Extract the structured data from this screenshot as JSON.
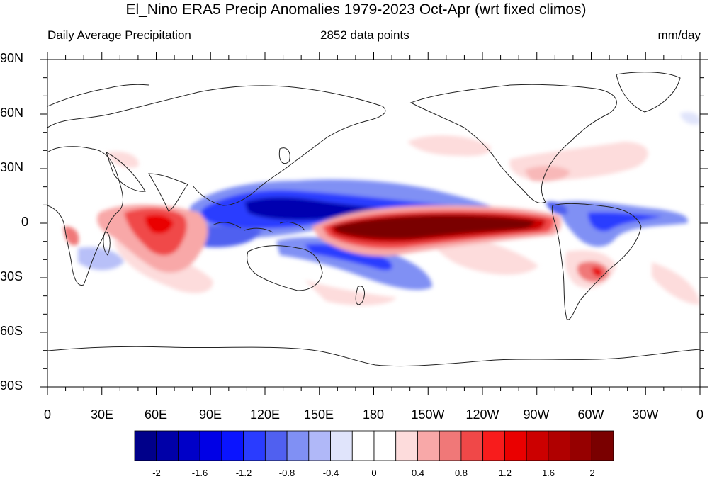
{
  "title": "El_Nino ERA5 Precip Anomalies 1979-2023 Oct-Apr (wrt fixed climos)",
  "subtitle_left": "Daily Average Precipitation",
  "subtitle_center": "2852 data points",
  "subtitle_right": "mm/day",
  "lat_labels": [
    "90N",
    "60N",
    "30N",
    "0",
    "30S",
    "60S",
    "90S"
  ],
  "lon_labels": [
    "0",
    "30E",
    "60E",
    "90E",
    "120E",
    "150E",
    "180",
    "150W",
    "120W",
    "90W",
    "60W",
    "30W",
    "0"
  ],
  "colorbar": {
    "colors": [
      "#00008a",
      "#0000a8",
      "#0000c8",
      "#0000e6",
      "#0a14ff",
      "#2a3cff",
      "#5060f0",
      "#8090f4",
      "#b0b8f8",
      "#e0e4fb",
      "#ffffff",
      "#ffffff",
      "#fddcdc",
      "#f8a8a8",
      "#f07878",
      "#f04848",
      "#f81c1c",
      "#ea0000",
      "#cc0000",
      "#b00000",
      "#960000",
      "#7a0000"
    ],
    "labels": [
      "-2",
      "-1.6",
      "-1.2",
      "-0.8",
      "-0.4",
      "0",
      "0.4",
      "0.8",
      "1.2",
      "1.6",
      "2"
    ]
  },
  "map_data": {
    "projection": "cylindrical-equidistant",
    "center_longitude": 180,
    "units": "mm/day",
    "anomaly_features": [
      {
        "region": "Central-Eastern equatorial Pacific",
        "sign": "positive",
        "max": 2.2
      },
      {
        "region": "Maritime Continent / tropical western Pacific",
        "sign": "negative",
        "min": -2.0
      },
      {
        "region": "Western equatorial Indian Ocean / East Africa",
        "sign": "positive",
        "max": 1.4
      },
      {
        "region": "South Pacific Convergence Zone",
        "sign": "negative",
        "min": -1.2
      },
      {
        "region": "Northern South America / Amazon",
        "sign": "negative",
        "min": -1.4
      },
      {
        "region": "Southeastern South America",
        "sign": "positive",
        "max": 1.2
      },
      {
        "region": "Southeastern United States / Gulf of Mexico",
        "sign": "positive",
        "max": 0.6
      },
      {
        "region": "Southern Africa",
        "sign": "negative",
        "min": -0.6
      }
    ]
  }
}
